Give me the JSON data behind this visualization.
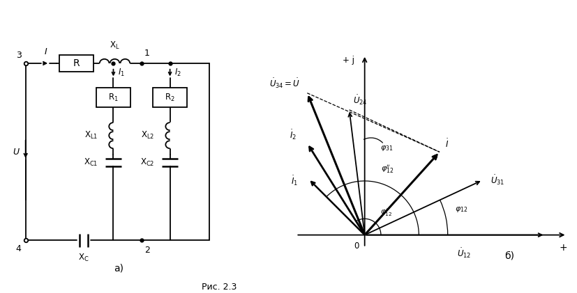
{
  "fig_width": 8.28,
  "fig_height": 4.21,
  "dpi": 100,
  "bg_color": "#ffffff",
  "caption": "Рис. 2.3",
  "label_a": "а)",
  "label_b": "б)",
  "ang_U12": 0.0,
  "ang_U31": 25.0,
  "ang_I": 48.0,
  "ang_U24": 97.0,
  "ang_U34": 112.0,
  "ang_I2": 122.0,
  "ang_I1": 135.0,
  "mag_U12": 1.0,
  "mag_U31": 0.72,
  "mag_I": 0.62,
  "mag_U24": 0.7,
  "mag_U34": 0.85,
  "mag_I2": 0.6,
  "mag_I1": 0.44
}
